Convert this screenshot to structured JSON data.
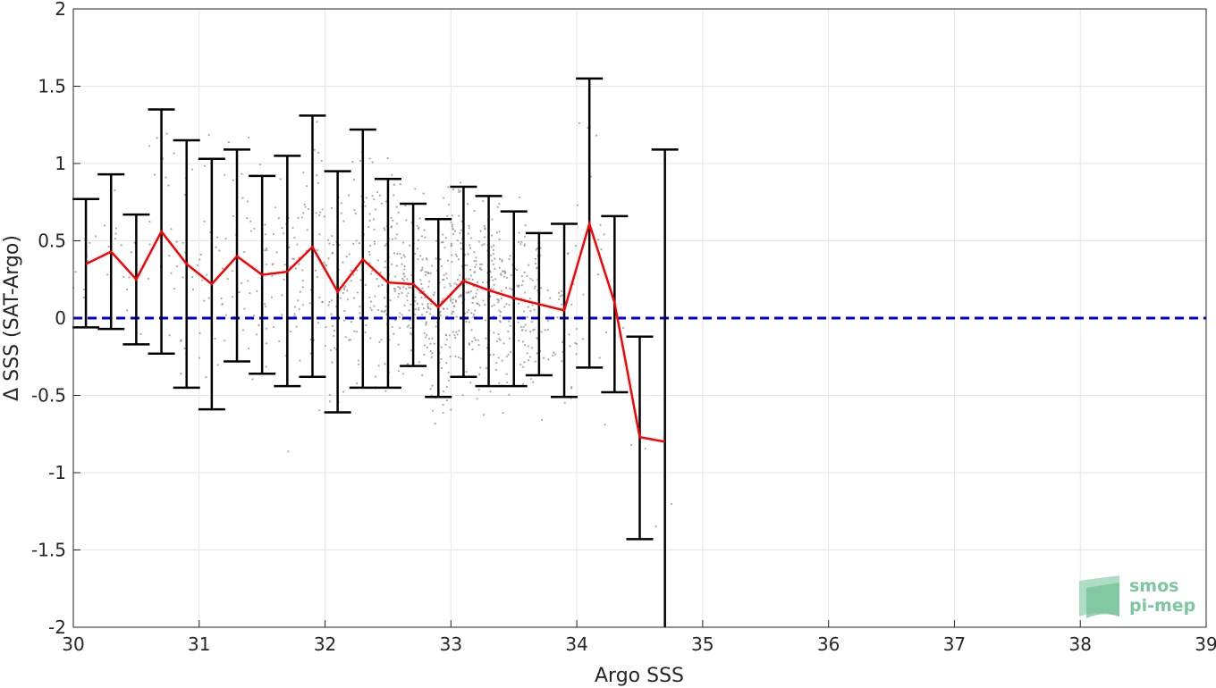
{
  "chart_data": {
    "type": "scatter",
    "xlabel": "Argo SSS",
    "ylabel": "Δ SSS (SAT-Argo)",
    "xlim": [
      30,
      39
    ],
    "ylim": [
      -2,
      2
    ],
    "xticks": [
      30,
      31,
      32,
      33,
      34,
      35,
      36,
      37,
      38,
      39
    ],
    "xtick_labels": [
      "30",
      "31",
      "32",
      "33",
      "34",
      "35",
      "36",
      "37",
      "38",
      "39"
    ],
    "yticks": [
      2,
      1.5,
      1,
      0.5,
      0,
      -0.5,
      -1,
      -1.5,
      -2
    ],
    "ytick_labels": [
      "2",
      "1.5",
      "1",
      "0.5",
      "0",
      "-0.5",
      "-1",
      "-1.5",
      "-2"
    ],
    "grid": true,
    "zero_line": {
      "y": 0,
      "style": "dashed",
      "color": "#0000cc"
    },
    "series": [
      {
        "kind": "mean_line",
        "color": "#ff0000",
        "x": [
          30.1,
          30.3,
          30.5,
          30.7,
          30.9,
          31.1,
          31.3,
          31.5,
          31.7,
          31.9,
          32.1,
          32.3,
          32.5,
          32.7,
          32.9,
          33.1,
          33.3,
          33.5,
          33.7,
          33.9,
          34.1,
          34.3,
          34.5,
          34.7
        ],
        "y": [
          0.35,
          0.43,
          0.25,
          0.56,
          0.35,
          0.22,
          0.4,
          0.28,
          0.3,
          0.46,
          0.17,
          0.38,
          0.23,
          0.22,
          0.07,
          0.24,
          0.18,
          0.13,
          0.09,
          0.05,
          0.61,
          0.1,
          -0.77,
          -0.8
        ]
      },
      {
        "kind": "error_bars",
        "color": "#000000",
        "x": [
          30.1,
          30.3,
          30.5,
          30.7,
          30.9,
          31.1,
          31.3,
          31.5,
          31.7,
          31.9,
          32.1,
          32.3,
          32.5,
          32.7,
          32.9,
          33.1,
          33.3,
          33.5,
          33.7,
          33.9,
          34.1,
          34.3,
          34.5,
          34.7
        ],
        "lower": [
          -0.06,
          -0.07,
          -0.17,
          -0.23,
          -0.45,
          -0.59,
          -0.28,
          -0.36,
          -0.44,
          -0.38,
          -0.61,
          -0.45,
          -0.45,
          -0.31,
          -0.51,
          -0.38,
          -0.44,
          -0.44,
          -0.37,
          -0.51,
          -0.32,
          -0.48,
          -1.43,
          -2.7
        ],
        "upper": [
          0.77,
          0.93,
          0.67,
          1.35,
          1.15,
          1.03,
          1.09,
          0.92,
          1.05,
          1.31,
          0.95,
          1.22,
          0.9,
          0.74,
          0.64,
          0.85,
          0.79,
          0.69,
          0.55,
          0.61,
          1.55,
          0.66,
          -0.12,
          1.09
        ]
      },
      {
        "kind": "scatter_cloud",
        "color": "#8c8c8c",
        "description_centers": [
          30.1,
          30.3,
          30.5,
          30.7,
          30.9,
          31.1,
          31.3,
          31.5,
          31.7,
          31.9,
          32.1,
          32.3,
          32.5,
          32.7,
          32.9,
          33.1,
          33.3,
          33.5,
          33.7,
          33.9,
          34.1,
          34.3,
          34.5,
          34.7
        ],
        "counts": [
          12,
          10,
          8,
          14,
          18,
          22,
          26,
          30,
          36,
          44,
          52,
          64,
          78,
          92,
          110,
          120,
          100,
          80,
          56,
          30,
          14,
          6,
          3,
          2
        ]
      }
    ],
    "logo": {
      "line1": "smos",
      "line2": "pi-mep"
    }
  }
}
